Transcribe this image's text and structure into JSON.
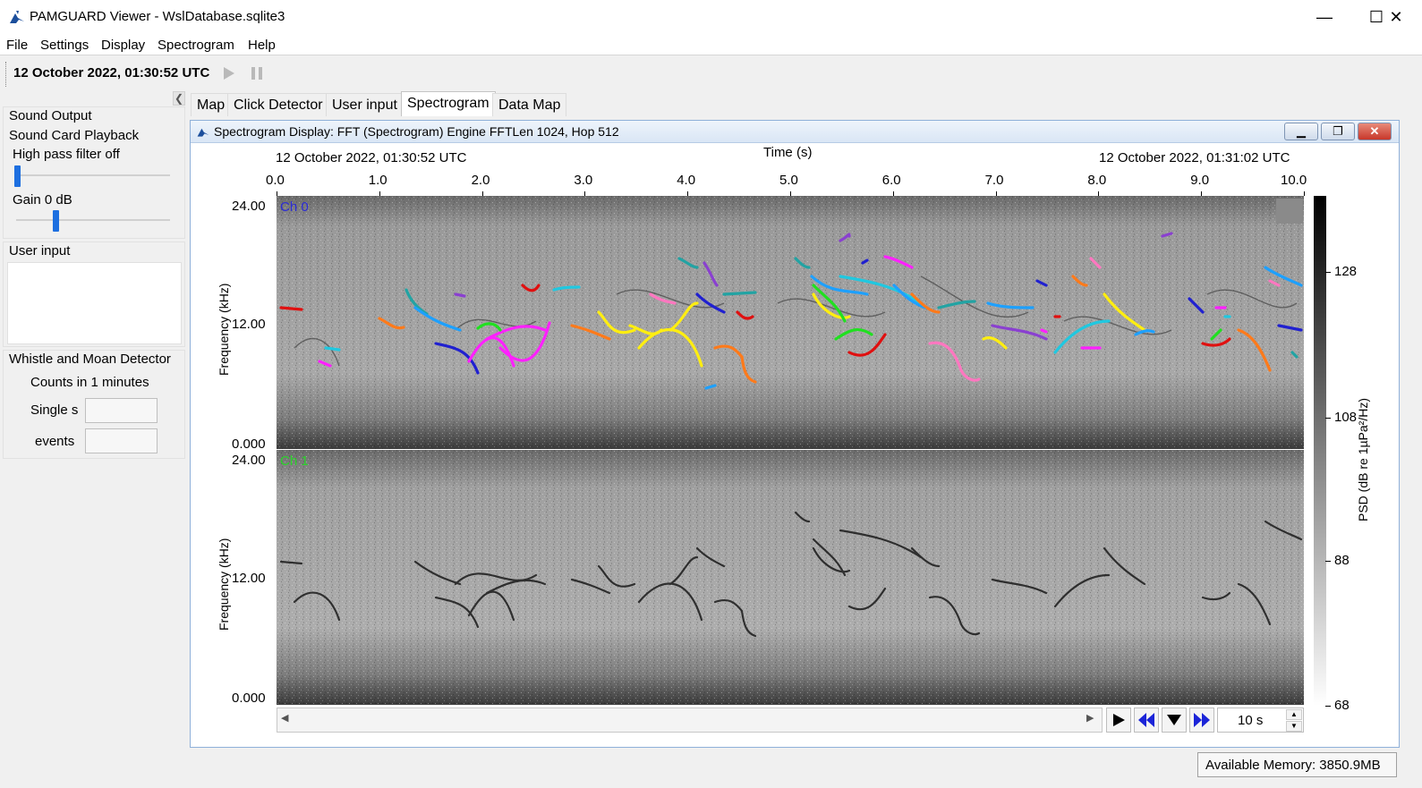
{
  "window": {
    "title": "PAMGUARD Viewer - WslDatabase.sqlite3",
    "minimize": "—",
    "maximize": "☐",
    "close": "✕"
  },
  "menu": [
    "File",
    "Settings",
    "Display",
    "Spectrogram",
    "Help"
  ],
  "toolbar": {
    "datetime": "12 October 2022, 01:30:52 UTC",
    "play_icon": "play-icon",
    "pause_icon": "pause-icon"
  },
  "left_panel": {
    "sound_output": {
      "title": "Sound Output",
      "playback": "Sound Card Playback",
      "hp_filter": "High pass filter off",
      "hp_level": 0.0,
      "gain": "Gain 0 dB",
      "gain_level": 0.25
    },
    "user_input": {
      "title": "User input"
    },
    "wmd": {
      "title": "Whistle and Moan Detector",
      "counts": "Counts in 1 minutes",
      "single_label": "Single s",
      "events_label": "events",
      "single_value": "",
      "events_value": ""
    }
  },
  "tabs": [
    "Map",
    "Click Detector",
    "User input",
    "Spectrogram",
    "Data Map"
  ],
  "active_tab": "Spectrogram",
  "spectrogram": {
    "frame_title": "Spectrogram Display: FFT (Spectrogram) Engine FFTLen 1024, Hop 512",
    "time_axis_label": "Time (s)",
    "start_time": "12 October 2022, 01:30:52 UTC",
    "end_time": "12 October 2022, 01:31:02 UTC",
    "time_ticks": [
      "0.0",
      "1.0",
      "2.0",
      "3.0",
      "4.0",
      "5.0",
      "6.0",
      "7.0",
      "8.0",
      "9.0",
      "10.0"
    ],
    "freq_ticks": [
      "24.00",
      "12.00",
      "0.000"
    ],
    "freq_axis_label": "Frequency (kHz)",
    "channels": [
      {
        "label": "Ch 0",
        "color": "#2b2bd6"
      },
      {
        "label": "Ch 1",
        "color": "#2ad42a"
      }
    ],
    "colorbar_label": "PSD (dB re 1µPa²/Hz)",
    "colorbar_ticks": [
      "128",
      "108",
      "88",
      "68"
    ],
    "window_length": "10 s"
  },
  "status": {
    "memory": "Available Memory: 3850.9MB"
  },
  "colors": {
    "accent": "#1d6fe0",
    "frame_border": "#8fb0d9"
  }
}
